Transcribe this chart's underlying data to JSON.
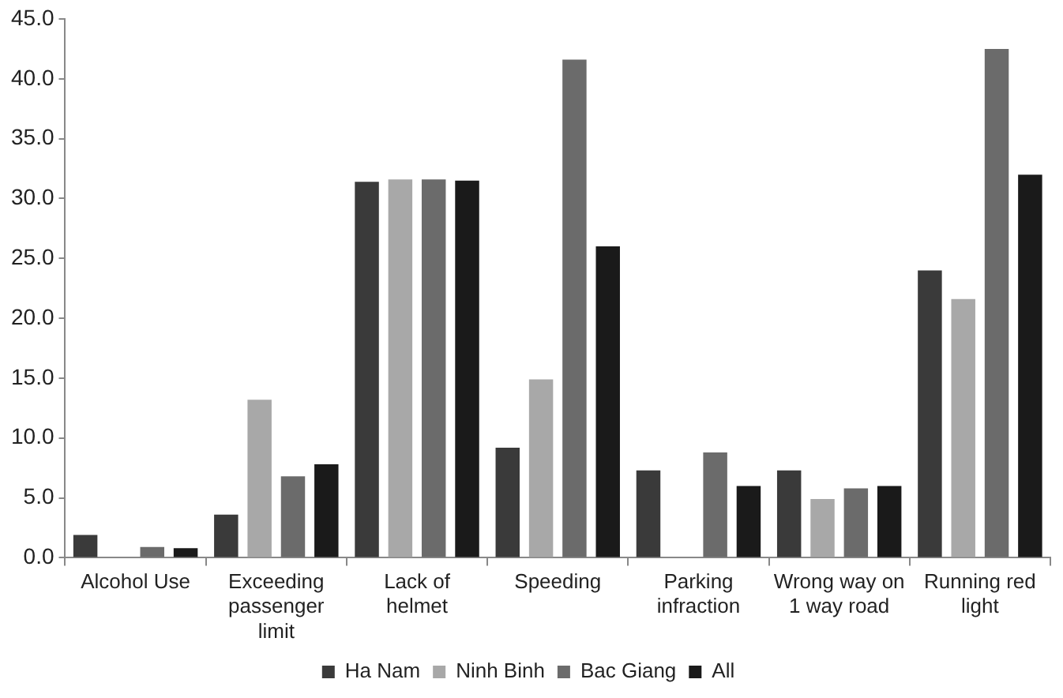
{
  "chart_data": {
    "type": "bar",
    "categories": [
      "Alcohol Use",
      "Exceeding passenger limit",
      "Lack of helmet",
      "Speeding",
      "Parking infraction",
      "Wrong way on 1 way road",
      "Running red light"
    ],
    "series": [
      {
        "name": "Ha Nam",
        "color": "#3a3a3a",
        "values": [
          1.9,
          3.6,
          31.4,
          9.2,
          7.3,
          7.3,
          24.0
        ]
      },
      {
        "name": "Ninh Binh",
        "color": "#a8a8a8",
        "values": [
          0,
          13.2,
          31.6,
          14.9,
          0,
          4.9,
          21.6
        ]
      },
      {
        "name": "Bac Giang",
        "color": "#6b6b6b",
        "values": [
          0.9,
          6.8,
          31.6,
          41.6,
          8.8,
          5.8,
          42.5
        ]
      },
      {
        "name": "All",
        "color": "#1a1a1a",
        "values": [
          0.8,
          7.8,
          31.5,
          26.0,
          6.0,
          6.0,
          32.0
        ]
      }
    ],
    "ylim": [
      0,
      45
    ],
    "yticks": [
      {
        "value": 0,
        "label": "0.0"
      },
      {
        "value": 5,
        "label": "5.0"
      },
      {
        "value": 10,
        "label": "10.0"
      },
      {
        "value": 15,
        "label": "15.0"
      },
      {
        "value": 20,
        "label": "20.0"
      },
      {
        "value": 25,
        "label": "25.0"
      },
      {
        "value": 30,
        "label": "30.0"
      },
      {
        "value": 35,
        "label": "35.0"
      },
      {
        "value": 40,
        "label": "40.0"
      },
      {
        "value": 45,
        "label": "45.0"
      }
    ],
    "grid": false,
    "legend": "bottom"
  }
}
